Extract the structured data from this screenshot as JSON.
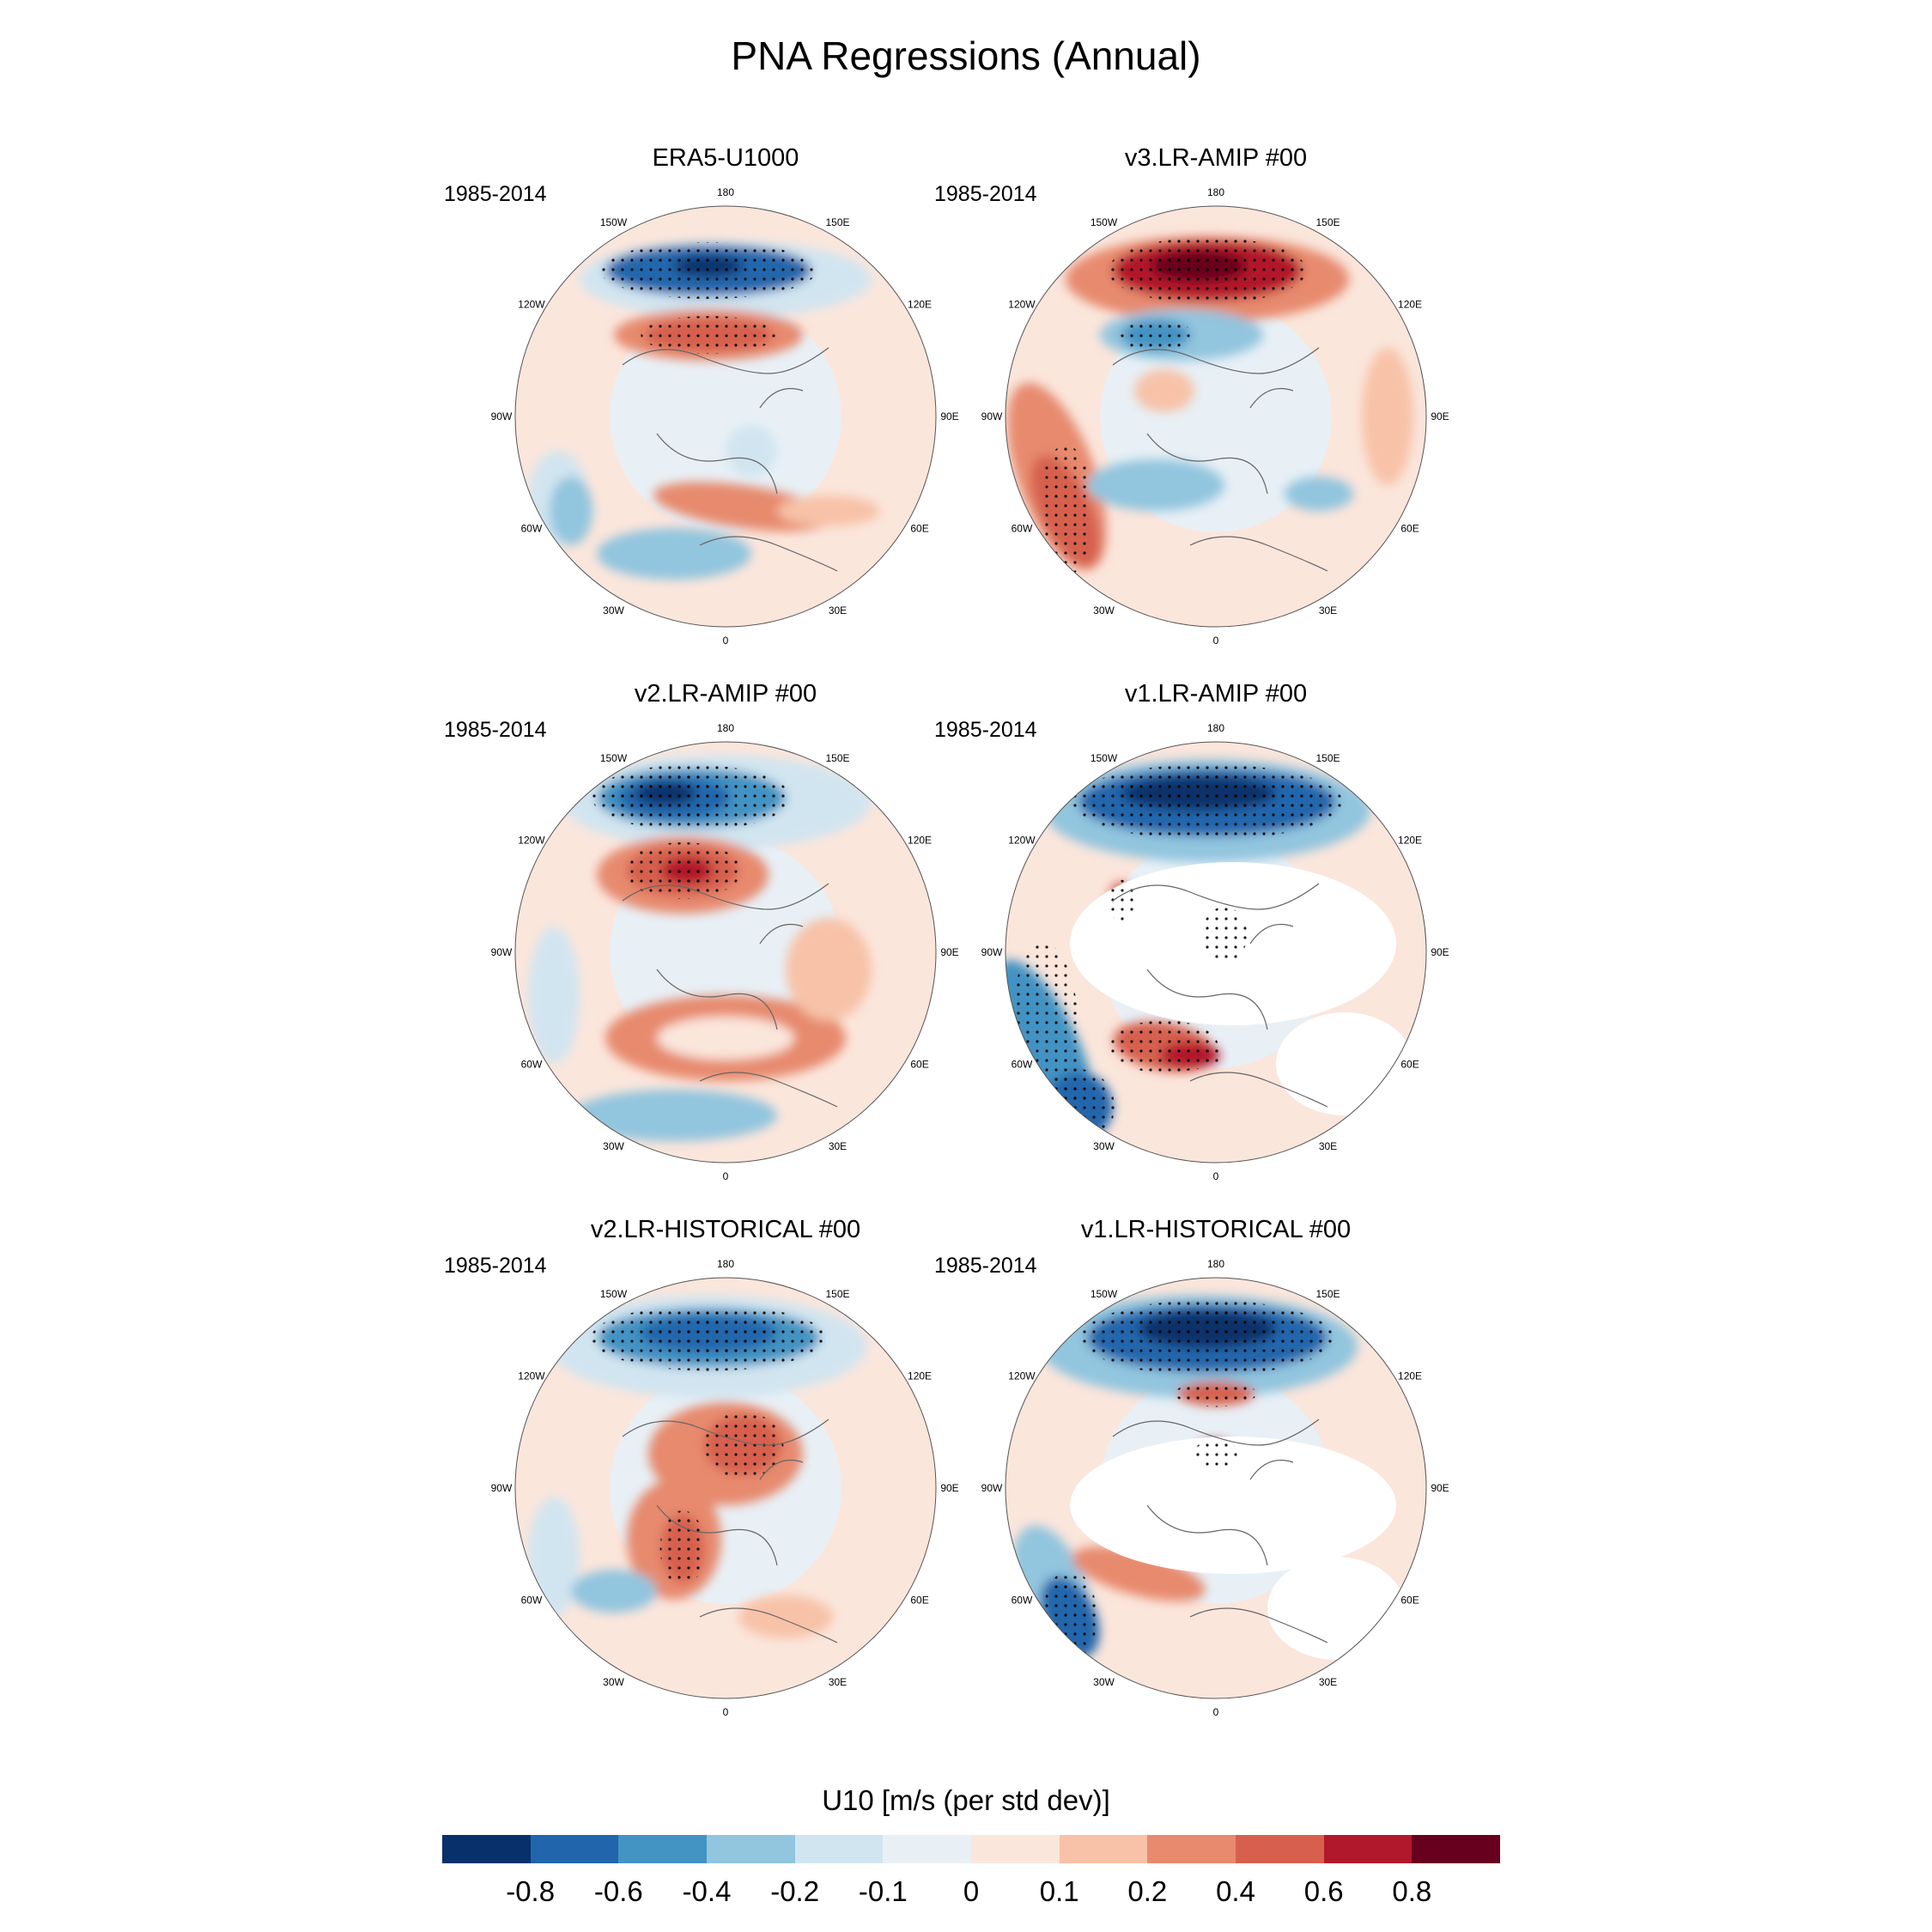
{
  "title": "PNA Regressions (Annual)",
  "longitude_labels": [
    "180",
    "150E",
    "120E",
    "90E",
    "60E",
    "30E",
    "0",
    "30W",
    "60W",
    "90W",
    "120W",
    "150W"
  ],
  "panels": [
    {
      "id": "era5",
      "title": "ERA5-U1000",
      "years": "1985-2014",
      "pattern": "era5"
    },
    {
      "id": "v3amip",
      "title": "v3.LR-AMIP  #00",
      "years": "1985-2014",
      "pattern": "v3amip"
    },
    {
      "id": "v2amip",
      "title": "v2.LR-AMIP  #00",
      "years": "1985-2014",
      "pattern": "v2amip"
    },
    {
      "id": "v1amip",
      "title": "v1.LR-AMIP  #00",
      "years": "1985-2014",
      "pattern": "v1amip"
    },
    {
      "id": "v2hist",
      "title": "v2.LR-HISTORICAL  #00",
      "years": "1985-2014",
      "pattern": "v2hist"
    },
    {
      "id": "v1hist",
      "title": "v1.LR-HISTORICAL  #00",
      "years": "1985-2014",
      "pattern": "v1hist"
    }
  ],
  "colorbar": {
    "title": "U10 [m/s (per std dev)]",
    "colors": [
      "#08306b",
      "#2166ac",
      "#4393c3",
      "#92c5de",
      "#d1e5f0",
      "#e8f0f6",
      "#fbe6dc",
      "#f7c2a8",
      "#e78a6e",
      "#d6604d",
      "#b2182b",
      "#67001f"
    ],
    "tick_labels": [
      "-0.8",
      "-0.6",
      "-0.4",
      "-0.2",
      "-0.1",
      "0",
      "0.1",
      "0.2",
      "0.4",
      "0.6",
      "0.8"
    ]
  }
}
